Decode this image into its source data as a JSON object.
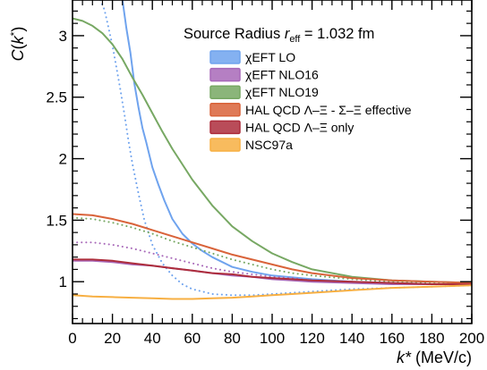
{
  "chart_data": {
    "type": "line",
    "xlabel_main": "k*",
    "xlabel_unit": " (MeV/c)",
    "ylabel": "C(k*)",
    "xlim": [
      0,
      200
    ],
    "ylim": [
      0.66,
      3.29
    ],
    "xticks": [
      0,
      20,
      40,
      60,
      80,
      100,
      120,
      140,
      160,
      180,
      200
    ],
    "yticks": [
      1,
      1.5,
      2,
      2.5,
      3
    ],
    "ytick_labels": [
      "1",
      "1.5",
      "2",
      "2.5",
      "3"
    ],
    "grid": false,
    "legend_position": "top-right",
    "legend_title": {
      "prefix": "Source Radius ",
      "symbol": "r",
      "subscript": "eff",
      "suffix": " = 1.032 fm"
    },
    "legend_entries": [
      {
        "label": "χEFT LO",
        "color": "#6fa3ee"
      },
      {
        "label": "χEFT NLO16",
        "color": "#a869b9"
      },
      {
        "label": "χEFT NLO19",
        "color": "#77a863"
      },
      {
        "label": "HAL QCD Λ–Ξ - Σ–Ξ effective",
        "color": "#d9633a"
      },
      {
        "label": "HAL QCD Λ–Ξ only",
        "color": "#ad2d3c"
      },
      {
        "label": "NSC97a",
        "color": "#f7af42"
      }
    ],
    "series": [
      {
        "name": "χEFT LO",
        "color": "#6fa3ee",
        "style": "solid",
        "x": [
          25,
          27,
          29,
          31,
          33,
          35,
          37,
          40,
          43,
          46,
          50,
          55,
          60,
          65,
          70,
          80,
          90,
          100,
          120,
          140,
          160,
          180,
          200
        ],
        "y": [
          3.29,
          3.06,
          2.86,
          2.61,
          2.42,
          2.25,
          2.13,
          1.93,
          1.79,
          1.66,
          1.51,
          1.39,
          1.31,
          1.25,
          1.2,
          1.12,
          1.08,
          1.05,
          1.02,
          1.0,
          0.99,
          0.98,
          0.98
        ]
      },
      {
        "name": "χEFT LO (dotted)",
        "color": "#6fa3ee",
        "style": "dotted",
        "x": [
          14,
          16,
          18,
          20,
          22,
          24,
          26,
          28,
          30,
          33,
          36,
          40,
          45,
          50,
          55,
          60,
          65,
          70,
          80,
          90,
          100,
          110,
          120,
          140,
          160,
          180,
          200
        ],
        "y": [
          3.29,
          3.21,
          3.07,
          2.92,
          2.74,
          2.56,
          2.36,
          2.15,
          1.96,
          1.72,
          1.5,
          1.3,
          1.15,
          1.05,
          0.98,
          0.94,
          0.92,
          0.9,
          0.89,
          0.89,
          0.9,
          0.91,
          0.92,
          0.94,
          0.95,
          0.96,
          0.97
        ]
      },
      {
        "name": "χEFT NLO16",
        "color": "#a869b9",
        "style": "solid",
        "x": [
          0,
          10,
          20,
          30,
          40,
          50,
          60,
          70,
          80,
          90,
          100,
          110,
          120,
          140,
          160,
          180,
          200
        ],
        "y": [
          1.17,
          1.17,
          1.16,
          1.14,
          1.13,
          1.11,
          1.09,
          1.07,
          1.05,
          1.04,
          1.02,
          1.01,
          1.0,
          0.99,
          0.98,
          0.98,
          0.98
        ]
      },
      {
        "name": "χEFT NLO16 (dotted)",
        "color": "#a869b9",
        "style": "dotted",
        "x": [
          0,
          10,
          20,
          30,
          40,
          50,
          60,
          70,
          80,
          90,
          100,
          110,
          120,
          140,
          160,
          180,
          200
        ],
        "y": [
          1.32,
          1.32,
          1.3,
          1.27,
          1.23,
          1.19,
          1.15,
          1.11,
          1.08,
          1.06,
          1.04,
          1.03,
          1.01,
          1.0,
          0.99,
          0.98,
          0.98
        ]
      },
      {
        "name": "χEFT NLO19",
        "color": "#77a863",
        "style": "solid",
        "x": [
          0,
          5,
          10,
          15,
          20,
          25,
          30,
          35,
          40,
          45,
          50,
          60,
          70,
          80,
          90,
          100,
          110,
          120,
          140,
          160,
          180,
          200
        ],
        "y": [
          3.14,
          3.12,
          3.08,
          3.02,
          2.93,
          2.81,
          2.66,
          2.52,
          2.37,
          2.22,
          2.08,
          1.83,
          1.62,
          1.45,
          1.33,
          1.23,
          1.16,
          1.1,
          1.04,
          1.01,
          1.0,
          0.99
        ]
      },
      {
        "name": "χEFT NLO19 (dotted)",
        "color": "#77a863",
        "style": "dotted",
        "x": [
          0,
          10,
          20,
          30,
          40,
          50,
          60,
          70,
          80,
          90,
          100,
          110,
          120,
          140,
          160,
          180,
          200
        ],
        "y": [
          1.52,
          1.51,
          1.48,
          1.44,
          1.39,
          1.33,
          1.28,
          1.23,
          1.18,
          1.14,
          1.1,
          1.07,
          1.05,
          1.02,
          1.0,
          0.99,
          0.99
        ]
      },
      {
        "name": "HAL QCD Λ–Ξ - Σ–Ξ effective",
        "color": "#d9633a",
        "style": "solid",
        "x": [
          0,
          10,
          20,
          30,
          40,
          50,
          60,
          70,
          80,
          90,
          100,
          110,
          120,
          140,
          160,
          180,
          200
        ],
        "y": [
          1.55,
          1.54,
          1.51,
          1.47,
          1.42,
          1.37,
          1.32,
          1.27,
          1.22,
          1.18,
          1.14,
          1.1,
          1.07,
          1.03,
          1.01,
          1.0,
          0.99
        ]
      },
      {
        "name": "HAL QCD Λ–Ξ only",
        "color": "#ad2d3c",
        "style": "solid",
        "x": [
          0,
          10,
          20,
          30,
          40,
          50,
          60,
          70,
          80,
          90,
          100,
          110,
          120,
          140,
          160,
          180,
          200
        ],
        "y": [
          1.18,
          1.18,
          1.17,
          1.15,
          1.13,
          1.11,
          1.09,
          1.07,
          1.06,
          1.04,
          1.03,
          1.02,
          1.01,
          1.0,
          0.99,
          0.98,
          0.98
        ]
      },
      {
        "name": "NSC97a",
        "color": "#f7af42",
        "style": "solid",
        "x": [
          0,
          10,
          20,
          30,
          40,
          50,
          60,
          70,
          80,
          90,
          100,
          110,
          120,
          140,
          160,
          180,
          200
        ],
        "y": [
          0.89,
          0.88,
          0.875,
          0.87,
          0.865,
          0.86,
          0.86,
          0.865,
          0.87,
          0.88,
          0.89,
          0.9,
          0.91,
          0.93,
          0.95,
          0.96,
          0.97
        ]
      }
    ]
  }
}
